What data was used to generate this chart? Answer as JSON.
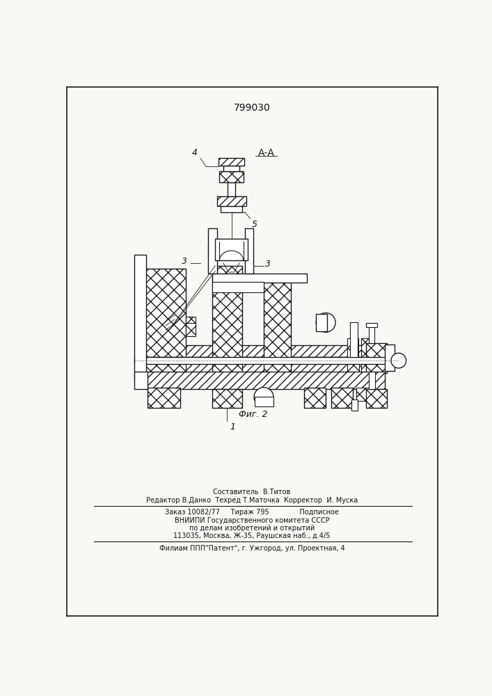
{
  "patent_number": "799030",
  "fig_label": "Фиг. 2",
  "section_label": "А-А",
  "bg_color": "#f8f8f5",
  "line_color": "#1a1a1a",
  "text_color": "#111111",
  "footer_lines": [
    "Составитель  В.Титов",
    "Редактор В.Данко  Техред Т.Маточка  Корректор  И. Муска",
    "Заказ 10082/77     Тираж 795              Подписное",
    "ВНИИПИ Государственного комитета СССР",
    "по делам изобретений и открытий",
    "113035, Москва, Ж-35, Раушская наб., д.4/5",
    "Филиам ППП\"Патент\", г. Ужгород, ул. Проектная, 4"
  ]
}
